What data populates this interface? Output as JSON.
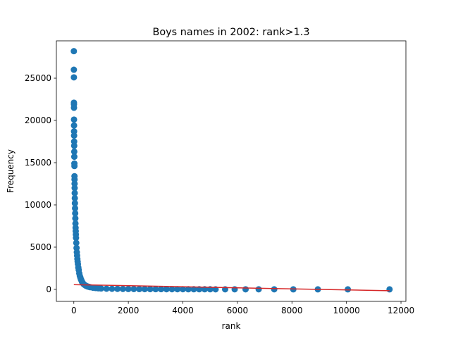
{
  "chart_data": {
    "type": "scatter",
    "title": "Boys names in 2002: rank>1.3",
    "xlabel": "rank",
    "ylabel": "Frequency",
    "xlim": [
      -640,
      12180
    ],
    "ylim": [
      -1420,
      29420
    ],
    "xticks": [
      0,
      2000,
      4000,
      6000,
      8000,
      10000,
      12000
    ],
    "yticks": [
      0,
      5000,
      10000,
      15000,
      20000,
      25000
    ],
    "grid": false,
    "marker_color": "#1f77b4",
    "series": [
      {
        "kind": "scatter",
        "x": [
          1,
          2,
          3,
          4,
          5,
          6,
          7,
          8,
          9,
          10,
          12,
          14,
          16,
          18,
          20,
          22,
          24,
          26,
          28,
          30,
          33,
          36,
          40,
          45,
          50,
          55,
          60,
          65,
          70,
          75,
          80,
          90,
          100,
          110,
          120,
          130,
          140,
          150,
          165,
          180,
          200,
          220,
          240,
          260,
          280,
          300,
          330,
          360,
          400,
          450,
          500,
          550,
          600,
          700,
          800,
          900,
          1000,
          1200,
          1400,
          1600,
          1800,
          2000,
          2200,
          2400,
          2600,
          2800,
          3000,
          3200,
          3400,
          3600,
          3800,
          4000,
          4200,
          4400,
          4600,
          4800,
          5000,
          5200,
          5550,
          5900,
          6300,
          6780,
          7350,
          8050,
          8950,
          10050,
          11580
        ],
        "y": [
          28200,
          26000,
          25100,
          22100,
          21900,
          21500,
          20100,
          19400,
          18700,
          18200,
          17500,
          17000,
          16300,
          15700,
          14900,
          14600,
          13400,
          13000,
          12500,
          12000,
          11400,
          10800,
          10200,
          9600,
          9000,
          8400,
          7800,
          7300,
          6900,
          6500,
          6100,
          5500,
          4900,
          4400,
          4000,
          3600,
          3300,
          3000,
          2600,
          2300,
          1900,
          1600,
          1400,
          1200,
          1050,
          900,
          750,
          630,
          520,
          420,
          350,
          300,
          260,
          200,
          160,
          130,
          110,
          85,
          70,
          60,
          52,
          45,
          40,
          36,
          33,
          30,
          27,
          25,
          23,
          21,
          20,
          18,
          17,
          16,
          15,
          14,
          13,
          12,
          11,
          10,
          9,
          8,
          7,
          6,
          5,
          4,
          3
        ]
      },
      {
        "kind": "line",
        "color": "#d62728",
        "x": [
          1,
          11580
        ],
        "y": [
          560,
          -160
        ]
      }
    ]
  }
}
